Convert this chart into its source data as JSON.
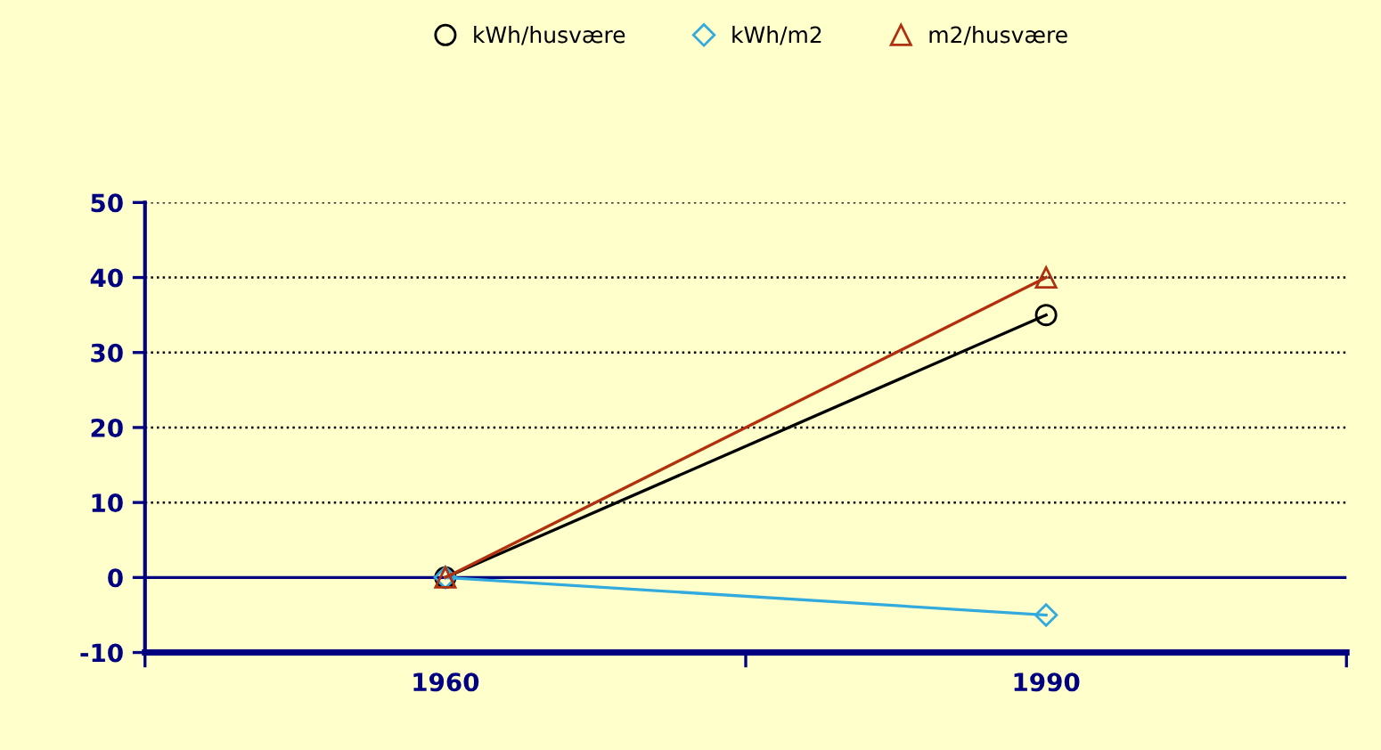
{
  "chart_data": {
    "type": "line",
    "categories": [
      "1960",
      "1990"
    ],
    "series": [
      {
        "name": "kWh/husvære",
        "color": "#000000",
        "marker": "circle",
        "values": [
          0,
          35
        ]
      },
      {
        "name": "kWh/m2",
        "color": "#33aadd",
        "marker": "diamond",
        "values": [
          0,
          -5
        ]
      },
      {
        "name": "m2/husvære",
        "color": "#b03010",
        "marker": "triangle",
        "values": [
          0,
          40
        ]
      }
    ],
    "ylim": [
      -10,
      50
    ],
    "yticks": [
      -10,
      0,
      10,
      20,
      30,
      40,
      50
    ],
    "grid": "y",
    "legend": "top",
    "ref_lines": [
      {
        "axis": "y",
        "value": 0,
        "color": "#000080",
        "line_style": "solid"
      }
    ]
  }
}
